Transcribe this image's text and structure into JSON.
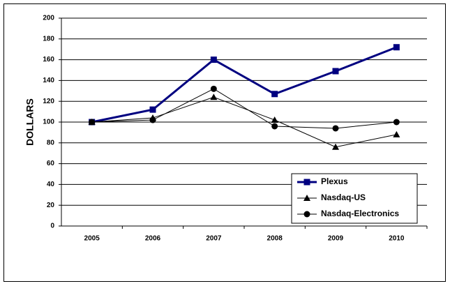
{
  "chart_data": {
    "type": "line",
    "y_label": "DOLLARS",
    "categories": [
      "2005",
      "2006",
      "2007",
      "2008",
      "2009",
      "2010"
    ],
    "series": [
      {
        "name": "Plexus",
        "color": "#000080",
        "marker": "square",
        "line_width": 3,
        "values": [
          100,
          112,
          160,
          127,
          149,
          172
        ]
      },
      {
        "name": "Nasdaq-US",
        "color": "#000000",
        "marker": "triangle",
        "line_width": 1,
        "values": [
          100,
          104,
          124,
          102,
          76,
          88
        ]
      },
      {
        "name": "Nasdaq-Electronics",
        "color": "#000000",
        "marker": "circle",
        "line_width": 1,
        "values": [
          100,
          102,
          132,
          96,
          94,
          100
        ]
      }
    ],
    "ylim": [
      0,
      200
    ],
    "yticks": [
      0,
      20,
      40,
      60,
      80,
      100,
      120,
      140,
      160,
      180,
      200
    ],
    "grid": true,
    "legend": "lower-right"
  }
}
